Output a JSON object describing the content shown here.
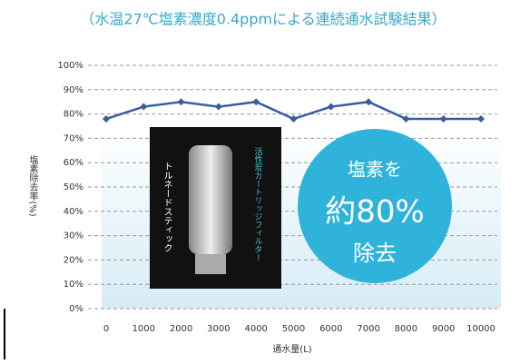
{
  "chart_data": {
    "type": "line",
    "title": "（水温27℃塩素濃度0.4ppmによる連続通水試験結果）",
    "y_label": "塩素除去率(%)",
    "x_label": "通水量(L)",
    "categories": [
      "0",
      "1000",
      "2000",
      "3000",
      "4000",
      "5000",
      "6000",
      "7000",
      "8000",
      "9000",
      "10000"
    ],
    "series": [
      {
        "name": "塩素除去率",
        "color": "#3b5ba5",
        "values": [
          78,
          83,
          85,
          83,
          85,
          78,
          83,
          85,
          78,
          78,
          78
        ]
      }
    ],
    "ylim": [
      0,
      100
    ],
    "yticks": [
      {
        "value": 0,
        "label": "0%"
      },
      {
        "value": 10,
        "label": "10%"
      },
      {
        "value": 20,
        "label": "20%"
      },
      {
        "value": 30,
        "label": "30%"
      },
      {
        "value": 40,
        "label": "40%"
      },
      {
        "value": 50,
        "label": "50%"
      },
      {
        "value": 60,
        "label": "60%"
      },
      {
        "value": 70,
        "label": "70%"
      },
      {
        "value": 80,
        "label": "80%"
      },
      {
        "value": 90,
        "label": "90%"
      },
      {
        "value": 100,
        "label": "100%"
      }
    ],
    "grid": true,
    "annotations": [
      "トルネードスティック",
      "活性炭カートリッジフィルター",
      "塩素を",
      "約80%",
      "除去"
    ]
  }
}
